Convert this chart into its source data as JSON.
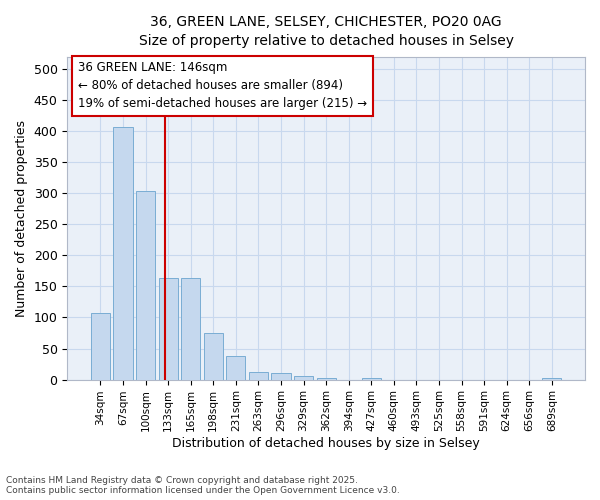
{
  "title_line1": "36, GREEN LANE, SELSEY, CHICHESTER, PO20 0AG",
  "title_line2": "Size of property relative to detached houses in Selsey",
  "xlabel": "Distribution of detached houses by size in Selsey",
  "ylabel": "Number of detached properties",
  "categories": [
    "34sqm",
    "67sqm",
    "100sqm",
    "133sqm",
    "165sqm",
    "198sqm",
    "231sqm",
    "263sqm",
    "296sqm",
    "329sqm",
    "362sqm",
    "394sqm",
    "427sqm",
    "460sqm",
    "493sqm",
    "525sqm",
    "558sqm",
    "591sqm",
    "624sqm",
    "656sqm",
    "689sqm"
  ],
  "values": [
    107,
    406,
    303,
    163,
    163,
    75,
    38,
    13,
    10,
    5,
    2,
    0,
    3,
    0,
    0,
    0,
    0,
    0,
    0,
    0,
    3
  ],
  "bar_color": "#c5d8ee",
  "bar_edge_color": "#7aadd4",
  "grid_color": "#c8d8ee",
  "background_color": "#eaf0f8",
  "fig_background": "#ffffff",
  "vline_x": 2.85,
  "vline_color": "#cc0000",
  "annotation_text": "36 GREEN LANE: 146sqm\n← 80% of detached houses are smaller (894)\n19% of semi-detached houses are larger (215) →",
  "annotation_box_color": "#ffffff",
  "annotation_box_edge": "#cc0000",
  "ylim": [
    0,
    520
  ],
  "yticks": [
    0,
    50,
    100,
    150,
    200,
    250,
    300,
    350,
    400,
    450,
    500
  ],
  "footer_line1": "Contains HM Land Registry data © Crown copyright and database right 2025.",
  "footer_line2": "Contains public sector information licensed under the Open Government Licence v3.0."
}
